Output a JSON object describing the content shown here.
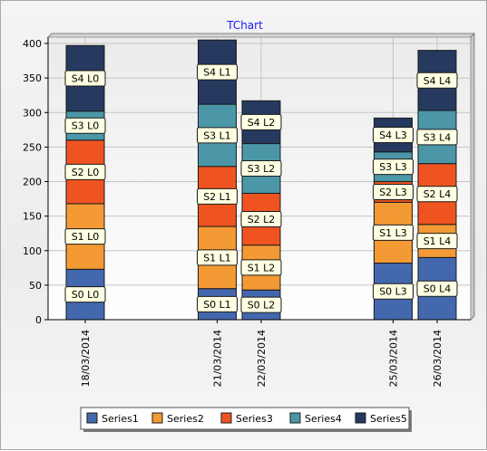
{
  "chart_data": {
    "type": "bar",
    "stacked": true,
    "title": "TChart",
    "xlabel": "",
    "ylabel": "",
    "ylim": [
      0,
      400
    ],
    "yticks": [
      0,
      50,
      100,
      150,
      200,
      250,
      300,
      350,
      400
    ],
    "categories": [
      "18/03/2014",
      "21/03/2014",
      "22/03/2014",
      "25/03/2014",
      "26/03/2014"
    ],
    "category_day_offsets": [
      0,
      3,
      4,
      7,
      8
    ],
    "grid": true,
    "legend_position": "bottom",
    "series": [
      {
        "name": "Series1",
        "color": "#4468ad",
        "values": [
          73,
          45,
          43,
          82,
          90
        ],
        "labels": [
          "S0 L0",
          "S0 L1",
          "S0 L2",
          "S0 L3",
          "S0 L4"
        ]
      },
      {
        "name": "Series2",
        "color": "#f39a34",
        "values": [
          95,
          90,
          65,
          88,
          48
        ],
        "labels": [
          "S1 L0",
          "S1 L1",
          "S1 L2",
          "S1 L3",
          "S1 L4"
        ]
      },
      {
        "name": "Series3",
        "color": "#ef5420",
        "values": [
          92,
          87,
          75,
          30,
          88
        ],
        "labels": [
          "S2 L0",
          "S2 L1",
          "S2 L2",
          "S2 L3",
          "S2 L4"
        ]
      },
      {
        "name": "Series4",
        "color": "#4b97a8",
        "values": [
          42,
          90,
          72,
          43,
          77
        ],
        "labels": [
          "S3 L0",
          "S3 L1",
          "S3 L2",
          "S3 L3",
          "S3 L4"
        ]
      },
      {
        "name": "Series5",
        "color": "#26395f",
        "values": [
          95,
          93,
          62,
          49,
          87
        ],
        "labels": [
          "S4 L0",
          "S4 L1",
          "S4 L2",
          "S4 L3",
          "S4 L4"
        ]
      }
    ]
  }
}
